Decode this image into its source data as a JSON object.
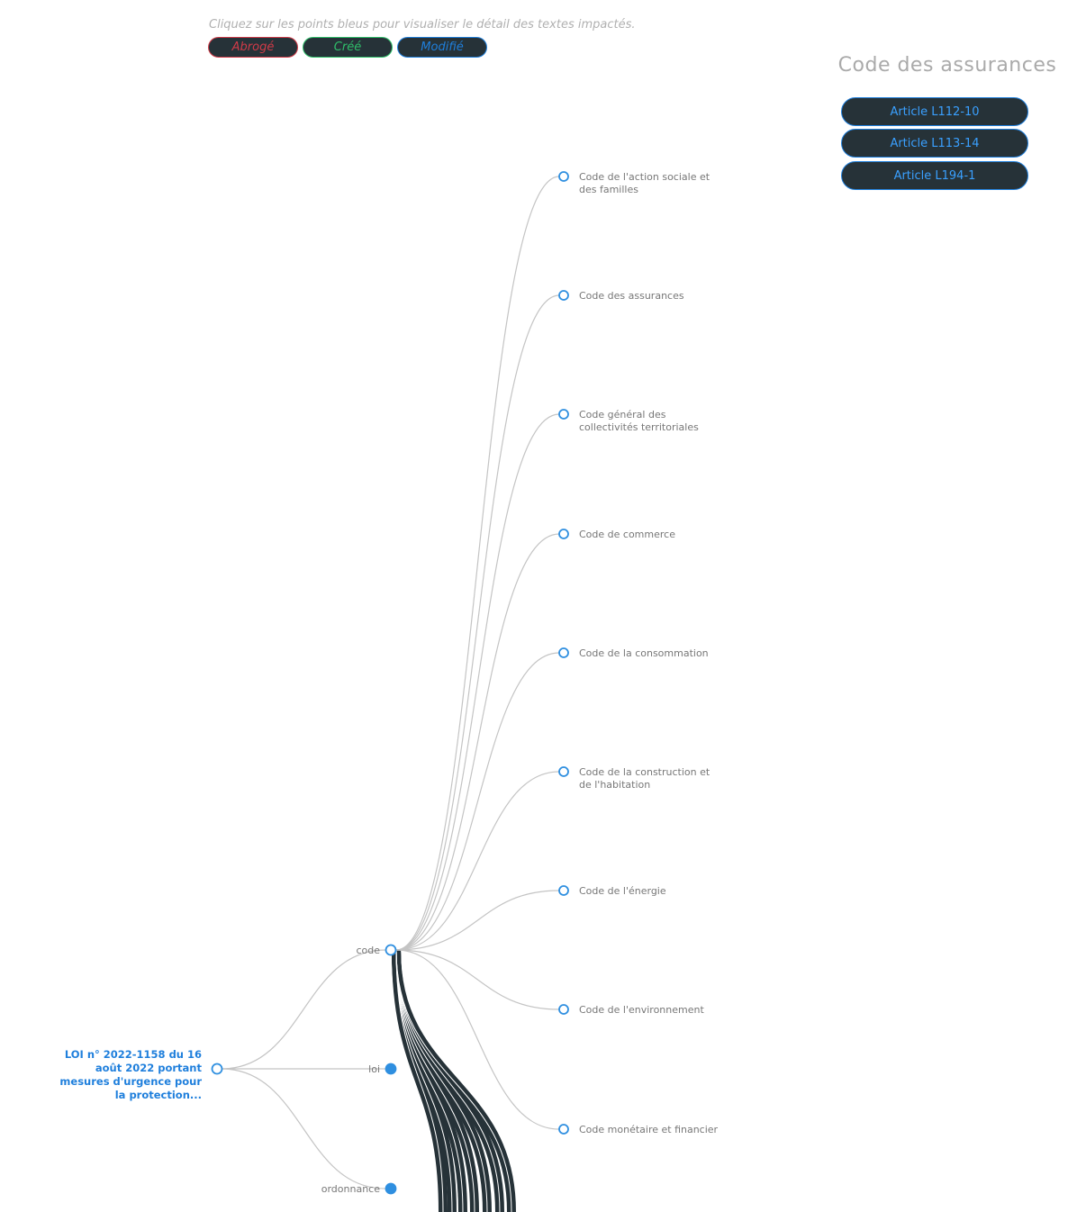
{
  "hint": "Cliquez sur les points bleus pour visualiser le détail des textes impactés.",
  "legend": [
    {
      "label": "Abrogé",
      "color": "#d13b48"
    },
    {
      "label": "Créé",
      "color": "#2fbf6a"
    },
    {
      "label": "Modifié",
      "color": "#1f7fdc"
    }
  ],
  "panel": {
    "title": "Code des assurances",
    "articles": [
      "Article L112-10",
      "Article L113-14",
      "Article L194-1"
    ]
  },
  "tree": {
    "root": "LOI n° 2022-1158 du 16 août 2022 portant mesures d'urgence pour la protection...",
    "types": [
      {
        "label": "code",
        "expanded": true
      },
      {
        "label": "loi",
        "expanded": false
      },
      {
        "label": "ordonnance",
        "expanded": false
      }
    ],
    "codes": [
      [
        "Code de l'action sociale et",
        "des familles"
      ],
      [
        "Code des assurances"
      ],
      [
        "Code général des",
        "collectivités territoriales"
      ],
      [
        "Code de commerce"
      ],
      [
        "Code de la consommation"
      ],
      [
        "Code de la construction et",
        "de l'habitation"
      ],
      [
        "Code de l'énergie"
      ],
      [
        "Code de l'environnement"
      ],
      [
        "Code monétaire et financier"
      ]
    ]
  },
  "colors": {
    "node": "#2f8fe0",
    "link": "#c4c4c4",
    "dark": "#263238"
  }
}
